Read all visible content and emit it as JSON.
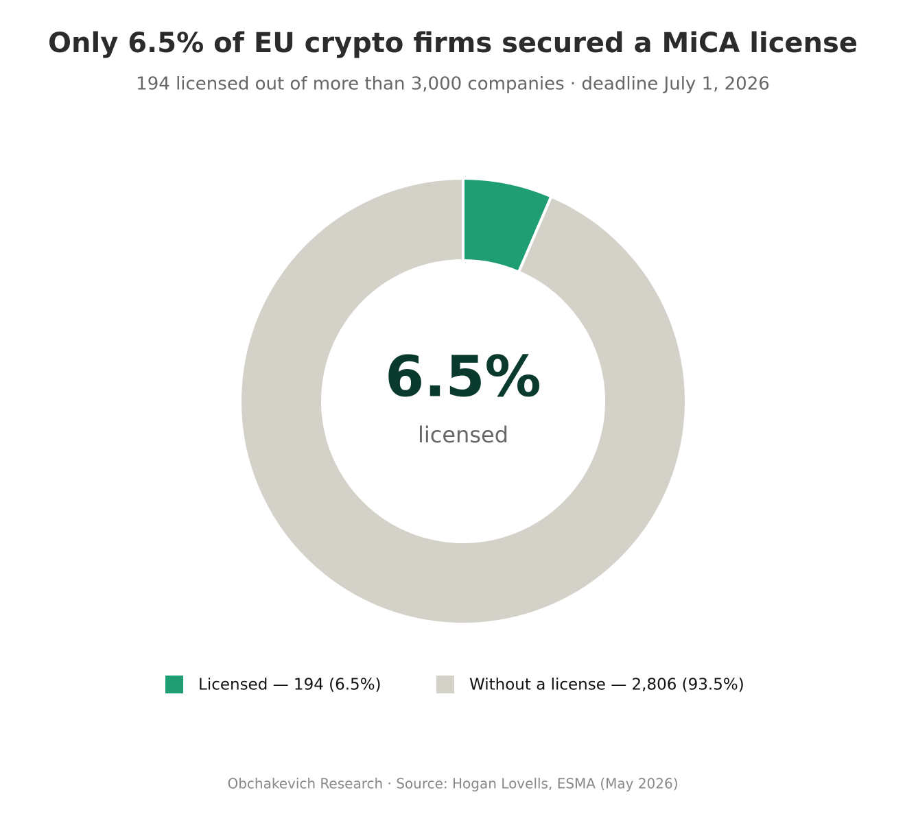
{
  "chart_data": {
    "type": "donut",
    "title": "Only 6.5% of EU crypto firms secured a MiCA license",
    "subtitle": "194 licensed out of more than 3,000 companies · deadline July 1, 2026",
    "categories": [
      "Licensed — 194 (6.5%)",
      "Without a license — 2,806 (93.5%)"
    ],
    "values": [
      194,
      2806
    ],
    "colors": [
      "#1e9e72",
      "#d3d1c8"
    ],
    "center_label": "6.5%",
    "center_sublabel": "licensed",
    "source": "Obchakevich Research · Source: Hogan Lovells, ESMA (May 2026)"
  }
}
